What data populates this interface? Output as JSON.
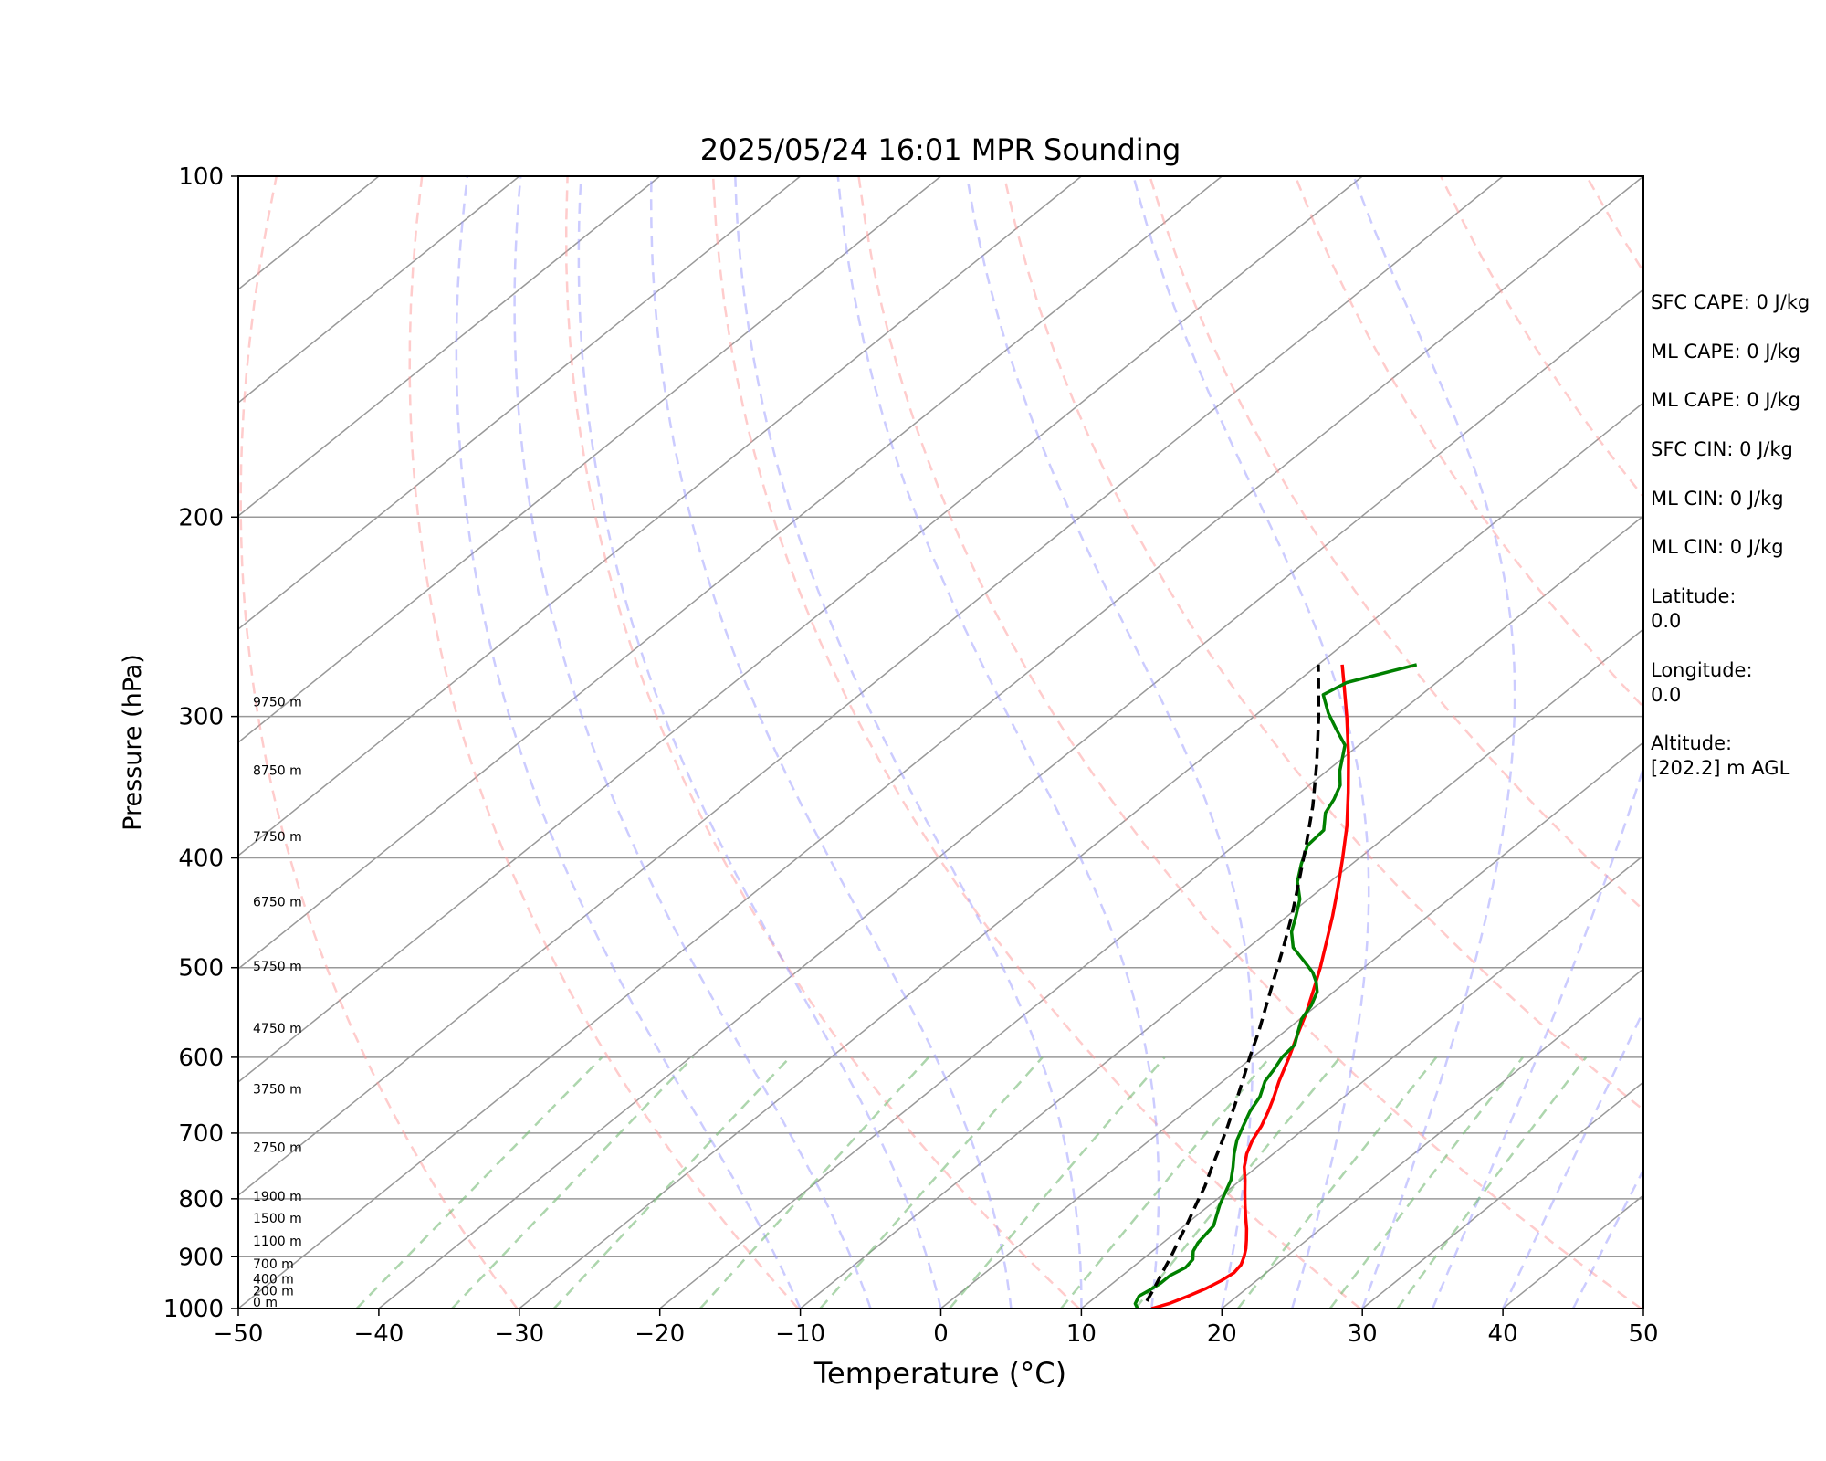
{
  "chart_data": {
    "type": "line",
    "title": "2025/05/24 16:01 MPR Sounding",
    "xlabel": "Temperature (°C)",
    "ylabel": "Pressure (hPa)",
    "xlim": [
      -50,
      50
    ],
    "ylim": [
      1000,
      100
    ],
    "y_scale": "log",
    "x_ticks": [
      "−50",
      "−40",
      "−30",
      "−20",
      "−10",
      "0",
      "10",
      "20",
      "30",
      "40",
      "50"
    ],
    "y_ticks": [
      100,
      200,
      300,
      400,
      500,
      600,
      700,
      800,
      900,
      1000
    ],
    "grid": true,
    "height_labels": [
      {
        "p": 1000,
        "text": "0 m"
      },
      {
        "p": 977,
        "text": "200 m"
      },
      {
        "p": 954,
        "text": "400 m"
      },
      {
        "p": 925,
        "text": "700 m"
      },
      {
        "p": 883,
        "text": "1100 m"
      },
      {
        "p": 843,
        "text": "1500 m"
      },
      {
        "p": 806,
        "text": "1900 m"
      },
      {
        "p": 730,
        "text": "2750 m"
      },
      {
        "p": 648,
        "text": "3750 m"
      },
      {
        "p": 573,
        "text": "4750 m"
      },
      {
        "p": 505,
        "text": "5750 m"
      },
      {
        "p": 443,
        "text": "6750 m"
      },
      {
        "p": 388,
        "text": "7750 m"
      },
      {
        "p": 339,
        "text": "8750 m"
      },
      {
        "p": 295,
        "text": "9750 m"
      }
    ],
    "series": [
      {
        "color": "#ff0000",
        "points": [
          [
            1000,
            15.0
          ],
          [
            990,
            15.8
          ],
          [
            975,
            16.5
          ],
          [
            960,
            17.1
          ],
          [
            945,
            17.5
          ],
          [
            930,
            17.7
          ],
          [
            915,
            17.5
          ],
          [
            900,
            17.0
          ],
          [
            885,
            16.4
          ],
          [
            870,
            15.7
          ],
          [
            850,
            14.7
          ],
          [
            830,
            13.6
          ],
          [
            810,
            12.5
          ],
          [
            790,
            11.4
          ],
          [
            770,
            10.3
          ],
          [
            750,
            9.1
          ],
          [
            730,
            8.1
          ],
          [
            710,
            7.3
          ],
          [
            690,
            6.7
          ],
          [
            670,
            5.9
          ],
          [
            650,
            5.0
          ],
          [
            630,
            4.0
          ],
          [
            600,
            2.6
          ],
          [
            575,
            1.3
          ],
          [
            550,
            0.0
          ],
          [
            525,
            -1.5
          ],
          [
            500,
            -3.1
          ],
          [
            475,
            -4.9
          ],
          [
            450,
            -6.8
          ],
          [
            425,
            -8.9
          ],
          [
            400,
            -11.2
          ],
          [
            375,
            -13.7
          ],
          [
            350,
            -16.6
          ],
          [
            325,
            -19.8
          ],
          [
            300,
            -23.4
          ],
          [
            280,
            -26.6
          ],
          [
            270,
            -28.3
          ]
        ]
      },
      {
        "color": "#008000",
        "points": [
          [
            1000,
            14.0
          ],
          [
            990,
            13.4
          ],
          [
            975,
            13.0
          ],
          [
            965,
            13.2
          ],
          [
            950,
            13.4
          ],
          [
            935,
            13.4
          ],
          [
            920,
            13.8
          ],
          [
            905,
            13.6
          ],
          [
            890,
            12.9
          ],
          [
            875,
            12.5
          ],
          [
            860,
            12.3
          ],
          [
            845,
            12.1
          ],
          [
            830,
            11.5
          ],
          [
            810,
            10.7
          ],
          [
            790,
            10.0
          ],
          [
            770,
            9.3
          ],
          [
            750,
            8.3
          ],
          [
            730,
            7.2
          ],
          [
            710,
            6.2
          ],
          [
            690,
            5.4
          ],
          [
            670,
            4.6
          ],
          [
            650,
            4.0
          ],
          [
            630,
            3.0
          ],
          [
            615,
            2.6
          ],
          [
            600,
            2.1
          ],
          [
            585,
            1.9
          ],
          [
            570,
            1.0
          ],
          [
            555,
            0.1
          ],
          [
            540,
            -0.4
          ],
          [
            525,
            -1.2
          ],
          [
            515,
            -2.1
          ],
          [
            505,
            -3.2
          ],
          [
            495,
            -4.6
          ],
          [
            480,
            -6.8
          ],
          [
            465,
            -8.3
          ],
          [
            450,
            -9.4
          ],
          [
            435,
            -10.6
          ],
          [
            420,
            -12.3
          ],
          [
            405,
            -13.6
          ],
          [
            390,
            -14.8
          ],
          [
            378,
            -15.0
          ],
          [
            365,
            -16.4
          ],
          [
            355,
            -17.0
          ],
          [
            345,
            -17.8
          ],
          [
            335,
            -19.1
          ],
          [
            325,
            -20.2
          ],
          [
            318,
            -21.0
          ],
          [
            308,
            -23.0
          ],
          [
            298,
            -25.0
          ],
          [
            287,
            -27.0
          ],
          [
            280,
            -26.4
          ],
          [
            270,
            -23.0
          ]
        ]
      },
      {
        "color": "#000000",
        "dashed": true,
        "points": [
          [
            985,
            14.0
          ],
          [
            960,
            13.4
          ],
          [
            930,
            12.6
          ],
          [
            900,
            11.8
          ],
          [
            870,
            10.9
          ],
          [
            840,
            10.0
          ],
          [
            810,
            9.0
          ],
          [
            780,
            8.0
          ],
          [
            750,
            6.8
          ],
          [
            720,
            5.6
          ],
          [
            690,
            4.3
          ],
          [
            660,
            2.9
          ],
          [
            630,
            1.4
          ],
          [
            600,
            -0.2
          ],
          [
            570,
            -1.8
          ],
          [
            540,
            -3.6
          ],
          [
            510,
            -5.5
          ],
          [
            480,
            -7.5
          ],
          [
            450,
            -9.7
          ],
          [
            420,
            -12.2
          ],
          [
            390,
            -14.9
          ],
          [
            360,
            -17.9
          ],
          [
            330,
            -21.4
          ],
          [
            300,
            -25.4
          ],
          [
            280,
            -28.4
          ],
          [
            270,
            -30.0
          ]
        ]
      }
    ],
    "dry_adiabats_theta_K": [
      243,
      263,
      283,
      303,
      323,
      343,
      363,
      383,
      403,
      423,
      443,
      463,
      483
    ],
    "moist_adiabats_start_C": [
      -10,
      -5,
      0,
      5,
      10,
      15,
      20,
      25,
      30,
      35,
      40,
      45
    ],
    "mixing_ratio_lines_gkg": [
      0.1,
      0.2,
      0.4,
      1,
      2,
      4,
      7,
      10,
      16,
      24,
      32
    ],
    "colors": {
      "dry_adiabat": "#ff9999",
      "moist_adiabat": "#9999ff",
      "mixing_ratio": "#77bb77",
      "isotherm": "#999999"
    }
  },
  "side_panel": {
    "sfc_cape": "SFC CAPE: 0 J/kg",
    "ml_cape_1": "ML CAPE: 0 J/kg",
    "ml_cape_2": "ML CAPE: 0 J/kg",
    "sfc_cin": "SFC CIN: 0 J/kg",
    "ml_cin_1": "ML CIN: 0 J/kg",
    "ml_cin_2": "ML CIN: 0 J/kg",
    "latitude_label": "Latitude:",
    "latitude_value": "0.0",
    "longitude_label": "Longitude:",
    "longitude_value": "0.0",
    "altitude_label": "Altitude:",
    "altitude_value": "[202.2] m AGL"
  }
}
